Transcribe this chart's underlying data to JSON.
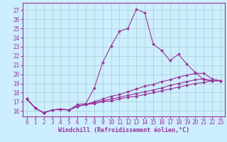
{
  "xlabel": "Windchill (Refroidissement éolien,°C)",
  "background_color": "#cceeff",
  "grid_color": "#aacccc",
  "line_color": "#993399",
  "spine_color": "#993399",
  "x_ticks": [
    0,
    1,
    2,
    3,
    4,
    5,
    6,
    7,
    8,
    9,
    10,
    11,
    12,
    13,
    14,
    15,
    16,
    17,
    18,
    19,
    20,
    21,
    22,
    23
  ],
  "y_ticks": [
    16,
    17,
    18,
    19,
    20,
    21,
    22,
    23,
    24,
    25,
    26,
    27
  ],
  "xlim": [
    -0.5,
    23.5
  ],
  "ylim": [
    15.4,
    27.8
  ],
  "lines": [
    {
      "x": [
        0,
        1,
        2,
        3,
        4,
        5,
        6,
        7,
        8,
        9,
        10,
        11,
        12,
        13,
        14,
        15,
        16,
        17,
        18,
        19,
        20,
        21,
        22,
        23
      ],
      "y": [
        17.3,
        16.3,
        15.8,
        16.1,
        16.2,
        16.1,
        16.7,
        16.8,
        18.5,
        21.3,
        23.1,
        24.7,
        25.0,
        27.1,
        26.7,
        23.3,
        22.6,
        21.5,
        22.2,
        21.1,
        20.2,
        19.4,
        19.3,
        19.3
      ]
    },
    {
      "x": [
        0,
        1,
        2,
        3,
        4,
        5,
        6,
        7,
        8,
        9,
        10,
        11,
        12,
        13,
        14,
        15,
        16,
        17,
        18,
        19,
        20,
        21,
        22,
        23
      ],
      "y": [
        17.3,
        16.3,
        15.8,
        16.1,
        16.2,
        16.1,
        16.5,
        16.7,
        17.0,
        17.3,
        17.6,
        17.8,
        18.1,
        18.4,
        18.7,
        18.9,
        19.2,
        19.4,
        19.7,
        19.9,
        20.1,
        20.1,
        19.5,
        19.3
      ]
    },
    {
      "x": [
        0,
        1,
        2,
        3,
        4,
        5,
        6,
        7,
        8,
        9,
        10,
        11,
        12,
        13,
        14,
        15,
        16,
        17,
        18,
        19,
        20,
        21,
        22,
        23
      ],
      "y": [
        17.3,
        16.3,
        15.8,
        16.1,
        16.2,
        16.1,
        16.5,
        16.7,
        16.9,
        17.1,
        17.3,
        17.5,
        17.7,
        17.9,
        18.1,
        18.3,
        18.5,
        18.8,
        19.0,
        19.2,
        19.4,
        19.5,
        19.3,
        19.3
      ]
    },
    {
      "x": [
        0,
        1,
        2,
        3,
        4,
        5,
        6,
        7,
        8,
        9,
        10,
        11,
        12,
        13,
        14,
        15,
        16,
        17,
        18,
        19,
        20,
        21,
        22,
        23
      ],
      "y": [
        17.3,
        16.3,
        15.8,
        16.1,
        16.2,
        16.1,
        16.5,
        16.7,
        16.8,
        17.0,
        17.1,
        17.3,
        17.5,
        17.6,
        17.8,
        18.0,
        18.2,
        18.4,
        18.6,
        18.8,
        19.0,
        19.1,
        19.3,
        19.3
      ]
    }
  ],
  "tick_fontsize": 5.5,
  "xlabel_fontsize": 6.0,
  "marker": "D",
  "marker_size": 2.0,
  "linewidth": 0.8
}
